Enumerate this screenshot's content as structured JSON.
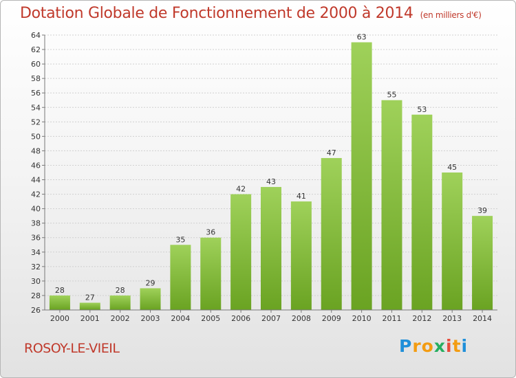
{
  "header": {
    "title": "Dotation Globale de Fonctionnement de 2000 à 2014",
    "unit": "(en milliers d'€)"
  },
  "footer": {
    "commune": "ROSOY-LE-VIEIL",
    "logo_letters": [
      "P",
      "r",
      "o",
      "x",
      "i",
      "t",
      "i"
    ],
    "logo_colors": [
      "#1f8fd9",
      "#f39c12",
      "#f39c12",
      "#27ae60",
      "#e74c3c",
      "#f39c12",
      "#1f8fd9"
    ]
  },
  "chart_data": {
    "type": "bar",
    "categories": [
      "2000",
      "2001",
      "2002",
      "2003",
      "2004",
      "2005",
      "2006",
      "2007",
      "2008",
      "2009",
      "2010",
      "2011",
      "2012",
      "2013",
      "2014"
    ],
    "values": [
      28,
      27,
      28,
      29,
      35,
      36,
      42,
      43,
      41,
      47,
      63,
      55,
      53,
      45,
      39
    ],
    "ylim": [
      26,
      64
    ],
    "yticks": [
      26,
      28,
      30,
      32,
      34,
      36,
      38,
      40,
      42,
      44,
      46,
      48,
      50,
      52,
      54,
      56,
      58,
      60,
      62,
      64
    ],
    "grid": true,
    "bar_color": "#8cc63f"
  }
}
